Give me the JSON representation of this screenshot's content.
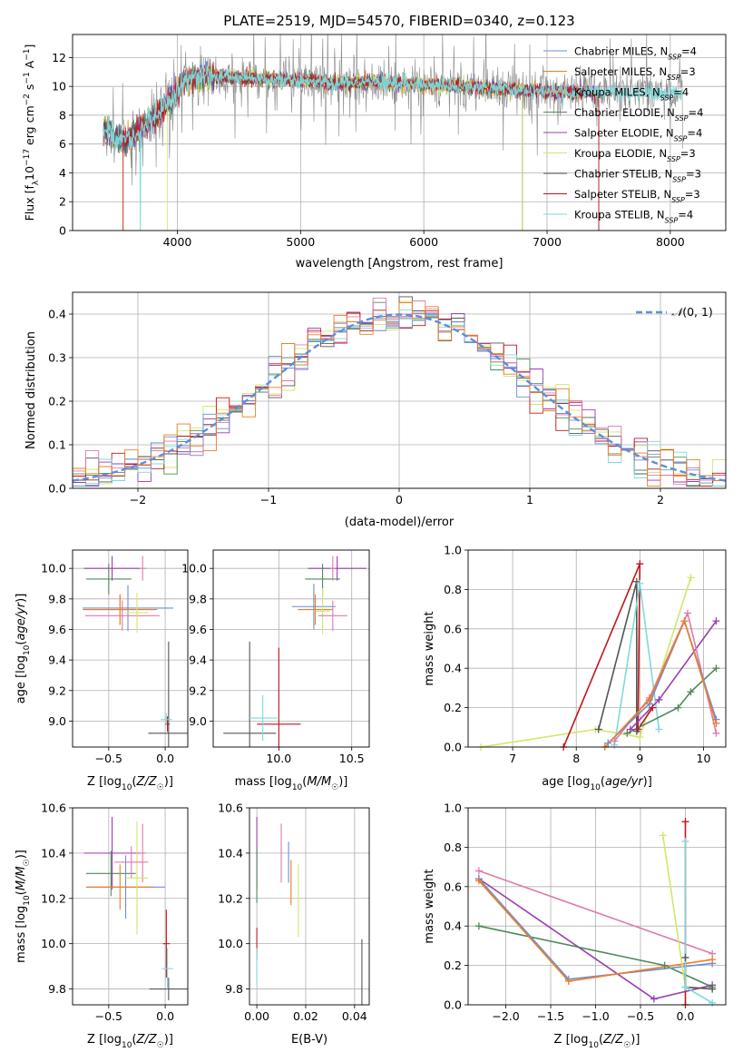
{
  "figure_title": "PLATE=2519, MJD=54570, FIBERID=0340, z=0.123",
  "colors": {
    "chabrier_miles": "#6b8ed6",
    "salpeter_miles": "#ee7e22",
    "kroupa_miles": "#e8a84f",
    "chabrier_elodie": "#4f8a5b",
    "salpeter_elodie": "#9a3bb4",
    "kroupa_elodie": "#cfe869",
    "chabrier_stelib": "#555555",
    "salpeter_stelib": "#c0161c",
    "kroupa_stelib": "#7edadb",
    "pink": "#e07aae",
    "gray_data": "#8a8a8a",
    "normal": "#5b8fdc",
    "grid": "#b0b0b0"
  },
  "chart_data": [
    {
      "type": "line",
      "id": "spectrum",
      "xlabel": "wavelength [Angstrom, rest frame]",
      "ylabel": "Flux [f_λ 10^-17 erg cm^-2 s^-1 A^-1]",
      "xlim": [
        3150,
        8450
      ],
      "ylim": [
        0,
        13.6
      ],
      "xticks": [
        4000,
        5000,
        6000,
        7000,
        8000
      ],
      "yticks": [
        0,
        2,
        4,
        6,
        8,
        10,
        12
      ],
      "legend_position": "top-right",
      "legend": [
        {
          "name": "Chabrier MILES, N_SSP=4",
          "color_key": "chabrier_miles"
        },
        {
          "name": "Salpeter MILES, N_SSP=3",
          "color_key": "salpeter_miles"
        },
        {
          "name": "Kroupa MILES, N_SSP=4",
          "color_key": "kroupa_miles"
        },
        {
          "name": "Chabrier ELODIE, N_SSP=4",
          "color_key": "chabrier_elodie"
        },
        {
          "name": "Salpeter ELODIE, N_SSP=4",
          "color_key": "salpeter_elodie"
        },
        {
          "name": "Kroupa ELODIE, N_SSP=3",
          "color_key": "kroupa_elodie"
        },
        {
          "name": "Chabrier STELIB, N_SSP=3",
          "color_key": "chabrier_stelib"
        },
        {
          "name": "Salpeter STELIB, N_SSP=3",
          "color_key": "salpeter_stelib"
        },
        {
          "name": "Kroupa STELIB, N_SSP=4",
          "color_key": "kroupa_stelib"
        }
      ],
      "wavelength_range": [
        3400,
        8100
      ],
      "continuum_knots": {
        "x": [
          3400,
          3550,
          3650,
          3750,
          3850,
          3950,
          4050,
          4200,
          4350,
          4500,
          4800,
          5000,
          5300,
          5600,
          6000,
          6500,
          7000,
          7500,
          8000,
          8100
        ],
        "y": [
          7.0,
          6.3,
          6.6,
          7.4,
          8.0,
          9.0,
          10.4,
          10.6,
          10.7,
          10.6,
          10.5,
          10.4,
          10.2,
          10.3,
          10.1,
          9.9,
          9.6,
          9.6,
          9.5,
          9.5
        ]
      },
      "model_dropouts": [
        3560,
        3700,
        3920,
        6800,
        7420
      ]
    },
    {
      "type": "bar",
      "id": "residuals",
      "xlabel": "(data-model)/error",
      "ylabel": "Normed distribution",
      "xlim": [
        -2.5,
        2.5
      ],
      "ylim": [
        0,
        0.45
      ],
      "xticks": [
        -2,
        -1,
        0,
        1,
        2
      ],
      "yticks": [
        0.0,
        0.1,
        0.2,
        0.3,
        0.4
      ],
      "legend_position": "top-right",
      "legend": [
        {
          "name": "N(0,1)",
          "color_key": "normal"
        }
      ],
      "bin_width": 0.1
    },
    {
      "type": "scatter",
      "id": "age_vs_Z",
      "xlabel": "Z [log10(Z/Z☉)]",
      "ylabel": "age [log10(age/yr)]",
      "xlim": [
        -0.82,
        0.2
      ],
      "ylim": [
        8.83,
        10.12
      ],
      "xticks": [
        -0.5,
        0.0
      ],
      "yticks": [
        9.0,
        9.2,
        9.4,
        9.6,
        9.8,
        10.0
      ],
      "points": [
        {
          "c": "salpeter_elodie",
          "x": -0.47,
          "y": 10.0,
          "xe": 0.25,
          "ye": 0.08
        },
        {
          "c": "chabrier_elodie",
          "x": -0.5,
          "y": 9.93,
          "xe": 0.2,
          "ye": 0.1
        },
        {
          "c": "pink",
          "x": -0.2,
          "y": 10.0,
          "xe": 0.03,
          "ye": 0.08
        },
        {
          "c": "chabrier_miles",
          "x": -0.33,
          "y": 9.74,
          "xe": 0.4,
          "ye": 0.15
        },
        {
          "c": "kroupa_miles",
          "x": -0.4,
          "y": 9.73,
          "xe": 0.3,
          "ye": 0.1
        },
        {
          "c": "salpeter_miles",
          "x": -0.4,
          "y": 9.73,
          "xe": 0.33,
          "ye": 0.1
        },
        {
          "c": "pink",
          "x": -0.38,
          "y": 9.69,
          "xe": 0.33,
          "ye": 0.1
        },
        {
          "c": "kroupa_elodie",
          "x": -0.25,
          "y": 9.71,
          "xe": 0.1,
          "ye": 0.13
        },
        {
          "c": "chabrier_stelib",
          "x": 0.03,
          "y": 8.92,
          "xe": 0.18,
          "ye": 0.6
        },
        {
          "c": "salpeter_stelib",
          "x": 0.02,
          "y": 8.98,
          "xe": 0.02,
          "ye": 0.05
        },
        {
          "c": "kroupa_stelib",
          "x": 0.01,
          "y": 9.01,
          "xe": 0.05,
          "ye": 0.04
        }
      ]
    },
    {
      "type": "scatter",
      "id": "age_vs_mass",
      "xlabel": "mass [log10(M/M☉)]",
      "ylabel": "",
      "xlim": [
        9.55,
        10.62
      ],
      "ylim": [
        8.83,
        10.12
      ],
      "xticks": [
        10.0,
        10.5
      ],
      "yticks": [
        9.0,
        9.2,
        9.4,
        9.6,
        9.8,
        10.0
      ],
      "points": [
        {
          "c": "salpeter_elodie",
          "x": 10.4,
          "y": 10.0,
          "xe": 0.2,
          "ye": 0.08
        },
        {
          "c": "chabrier_elodie",
          "x": 10.3,
          "y": 9.93,
          "xe": 0.12,
          "ye": 0.1
        },
        {
          "c": "pink",
          "x": 10.37,
          "y": 10.0,
          "xe": 0.02,
          "ye": 0.08
        },
        {
          "c": "chabrier_miles",
          "x": 10.24,
          "y": 9.75,
          "xe": 0.15,
          "ye": 0.15
        },
        {
          "c": "salpeter_miles",
          "x": 10.25,
          "y": 9.73,
          "xe": 0.12,
          "ye": 0.1
        },
        {
          "c": "kroupa_elodie",
          "x": 10.3,
          "y": 9.72,
          "xe": 0.05,
          "ye": 0.15
        },
        {
          "c": "pink",
          "x": 10.37,
          "y": 9.69,
          "xe": 0.1,
          "ye": 0.1
        },
        {
          "c": "chabrier_stelib",
          "x": 9.8,
          "y": 8.92,
          "xe": 0.18,
          "ye": 0.6
        },
        {
          "c": "salpeter_stelib",
          "x": 10.0,
          "y": 8.98,
          "xe": 0.15,
          "ye": 0.5
        },
        {
          "c": "kroupa_stelib",
          "x": 9.89,
          "y": 9.02,
          "xe": 0.1,
          "ye": 0.15
        }
      ]
    },
    {
      "type": "line",
      "id": "weight_vs_age",
      "xlabel": "age [log10(age/yr)]",
      "ylabel": "mass weight",
      "xlim": [
        6.3,
        10.35
      ],
      "ylim": [
        0,
        1.0
      ],
      "xticks": [
        7,
        8,
        9,
        10
      ],
      "yticks": [
        0.0,
        0.2,
        0.4,
        0.6,
        0.8,
        1.0
      ],
      "series": [
        {
          "c": "kroupa_elodie",
          "x": [
            6.5,
            8.3,
            9.0,
            9.8
          ],
          "y": [
            0.0,
            0.09,
            0.05,
            0.86
          ]
        },
        {
          "c": "salpeter_stelib",
          "x": [
            7.8,
            9.0,
            8.97,
            9.2
          ],
          "y": [
            0.0,
            0.93,
            0.09,
            0.2
          ]
        },
        {
          "c": "chabrier_stelib",
          "x": [
            8.35,
            8.95,
            8.95
          ],
          "y": [
            0.09,
            0.84,
            0.08
          ]
        },
        {
          "c": "kroupa_stelib",
          "x": [
            8.6,
            9.0,
            9.3
          ],
          "y": [
            0.01,
            0.83,
            0.09
          ]
        },
        {
          "c": "chabrier_elodie",
          "x": [
            8.8,
            9.6,
            9.8,
            10.2
          ],
          "y": [
            0.07,
            0.2,
            0.28,
            0.4
          ]
        },
        {
          "c": "salpeter_elodie",
          "x": [
            8.85,
            9.3,
            10.2
          ],
          "y": [
            0.09,
            0.24,
            0.64
          ]
        },
        {
          "c": "pink",
          "x": [
            8.6,
            9.15,
            9.75,
            10.2
          ],
          "y": [
            0.03,
            0.25,
            0.68,
            0.07
          ]
        },
        {
          "c": "chabrier_miles",
          "x": [
            8.5,
            9.15,
            9.7,
            10.2
          ],
          "y": [
            0.02,
            0.22,
            0.64,
            0.14
          ]
        },
        {
          "c": "salpeter_miles",
          "x": [
            8.45,
            9.15,
            9.7,
            10.2
          ],
          "y": [
            0.0,
            0.24,
            0.64,
            0.12
          ]
        }
      ]
    },
    {
      "type": "scatter",
      "id": "mass_vs_Z",
      "xlabel": "Z [log10(Z/Z☉)]",
      "ylabel": "mass [log10(M/M☉)]",
      "xlim": [
        -0.82,
        0.2
      ],
      "ylim": [
        9.73,
        10.6
      ],
      "xticks": [
        -0.5,
        0.0
      ],
      "yticks": [
        9.8,
        10.0,
        10.2,
        10.4,
        10.6
      ],
      "points": [
        {
          "c": "salpeter_elodie",
          "x": -0.47,
          "y": 10.4,
          "xe": 0.25,
          "ye": 0.16
        },
        {
          "c": "chabrier_elodie",
          "x": -0.48,
          "y": 10.31,
          "xe": 0.22,
          "ye": 0.1
        },
        {
          "c": "pink",
          "x": -0.2,
          "y": 10.4,
          "xe": 0.03,
          "ye": 0.13
        },
        {
          "c": "chabrier_miles",
          "x": -0.35,
          "y": 10.25,
          "xe": 0.35,
          "ye": 0.14
        },
        {
          "c": "salpeter_miles",
          "x": -0.4,
          "y": 10.25,
          "xe": 0.3,
          "ye": 0.1
        },
        {
          "c": "kroupa_elodie",
          "x": -0.25,
          "y": 10.29,
          "xe": 0.1,
          "ye": 0.25
        },
        {
          "c": "pink",
          "x": -0.3,
          "y": 10.36,
          "xe": 0.15,
          "ye": 0.07
        },
        {
          "c": "chabrier_stelib",
          "x": 0.03,
          "y": 9.8,
          "xe": 0.17,
          "ye": 0.05
        },
        {
          "c": "salpeter_stelib",
          "x": 0.01,
          "y": 10.0,
          "xe": 0.03,
          "ye": 0.15
        },
        {
          "c": "kroupa_stelib",
          "x": 0.02,
          "y": 9.89,
          "xe": 0.05,
          "ye": 0.09
        }
      ]
    },
    {
      "type": "scatter",
      "id": "mass_vs_ebv",
      "xlabel": "E(B-V)",
      "ylabel": "",
      "xlim": [
        -0.003,
        0.046
      ],
      "ylim": [
        9.73,
        10.6
      ],
      "xticks": [
        0.0,
        0.02,
        0.04
      ],
      "yticks": [
        9.8,
        10.0,
        10.2,
        10.4,
        10.6
      ],
      "points": [
        {
          "c": "salpeter_elodie",
          "x": 0.0,
          "y": 10.4,
          "xe": 0.0,
          "ye": 0.16
        },
        {
          "c": "chabrier_elodie",
          "x": 0.0,
          "y": 10.3,
          "xe": 0.0,
          "ye": 0.12
        },
        {
          "c": "salpeter_stelib",
          "x": 0.0,
          "y": 10.0,
          "xe": 0.0,
          "ye": 0.07
        },
        {
          "c": "kroupa_stelib",
          "x": 0.0,
          "y": 9.9,
          "xe": 0.0,
          "ye": 0.08
        },
        {
          "c": "pink",
          "x": 0.01,
          "y": 10.4,
          "xe": 0.0,
          "ye": 0.13
        },
        {
          "c": "chabrier_miles",
          "x": 0.013,
          "y": 10.36,
          "xe": 0.0,
          "ye": 0.09
        },
        {
          "c": "salpeter_miles",
          "x": 0.014,
          "y": 10.27,
          "xe": 0.0,
          "ye": 0.1
        },
        {
          "c": "kroupa_elodie",
          "x": 0.017,
          "y": 10.19,
          "xe": 0.0,
          "ye": 0.16
        },
        {
          "c": "chabrier_stelib",
          "x": 0.043,
          "y": 9.83,
          "xe": 0.0,
          "ye": 0.19
        }
      ]
    },
    {
      "type": "line",
      "id": "weight_vs_Z",
      "xlabel": "Z [log10(Z/Z☉)]",
      "ylabel": "mass weight",
      "xlim": [
        -2.42,
        0.45
      ],
      "ylim": [
        0,
        1.0
      ],
      "xticks": [
        -2.0,
        -1.5,
        -1.0,
        -0.5,
        0.0
      ],
      "yticks": [
        0.0,
        0.2,
        0.4,
        0.6,
        0.8,
        1.0
      ],
      "series": [
        {
          "c": "pink",
          "x": [
            -2.3,
            0.3
          ],
          "y": [
            0.68,
            0.26
          ]
        },
        {
          "c": "salpeter_elodie",
          "x": [
            -2.3,
            -0.35,
            0.3
          ],
          "y": [
            0.64,
            0.03,
            0.1
          ]
        },
        {
          "c": "chabrier_elodie",
          "x": [
            -2.3,
            -0.23,
            0.3
          ],
          "y": [
            0.4,
            0.2,
            0.09
          ]
        },
        {
          "c": "chabrier_miles",
          "x": [
            -2.3,
            -1.3,
            0.3
          ],
          "y": [
            0.64,
            0.13,
            0.21
          ]
        },
        {
          "c": "salpeter_miles",
          "x": [
            -2.3,
            -1.3,
            0.3
          ],
          "y": [
            0.63,
            0.12,
            0.23
          ]
        },
        {
          "c": "kroupa_elodie",
          "x": [
            -0.25,
            0.0
          ],
          "y": [
            0.86,
            0.09
          ]
        },
        {
          "c": "salpeter_stelib",
          "x": [
            0.0,
            0.0
          ],
          "y": [
            0.93,
            0.0
          ]
        },
        {
          "c": "chabrier_stelib",
          "x": [
            0.0,
            0.0,
            0.3
          ],
          "y": [
            0.24,
            0.09,
            0.08
          ]
        },
        {
          "c": "kroupa_stelib",
          "x": [
            0.0,
            0.0,
            0.3
          ],
          "y": [
            0.83,
            0.09,
            0.01
          ]
        }
      ]
    }
  ]
}
